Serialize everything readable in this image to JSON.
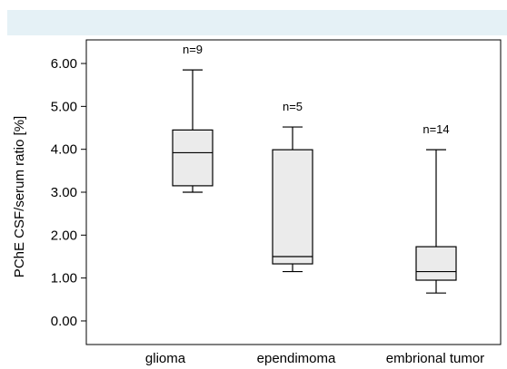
{
  "chart_data": {
    "type": "box",
    "ylabel": "PChE CSF/serum ratio [%]",
    "ylim": [
      -0.55,
      6.55
    ],
    "yticks": [
      "0.00",
      "1.00",
      "2.00",
      "3.00",
      "4.00",
      "5.00",
      "6.00"
    ],
    "yticks_values": [
      0,
      1,
      2,
      3,
      4,
      5,
      6
    ],
    "categories": [
      "glioma",
      "ependimoma",
      "embrional tumor"
    ],
    "boxes": [
      {
        "category": "glioma",
        "n_label": "n=9",
        "min": 3.0,
        "q1": 3.15,
        "median": 3.92,
        "q3": 4.45,
        "max": 5.85
      },
      {
        "category": "ependimoma",
        "n_label": "n=5",
        "min": 1.15,
        "q1": 1.33,
        "median": 1.5,
        "q3": 3.99,
        "max": 4.52
      },
      {
        "category": "embrional tumor",
        "n_label": "n=14",
        "min": 0.65,
        "q1": 0.95,
        "median": 1.15,
        "q3": 1.73,
        "max": 3.99
      }
    ],
    "box_fill": "#ebebeb",
    "grid": false
  },
  "header_band_color": "#e5f1f6"
}
